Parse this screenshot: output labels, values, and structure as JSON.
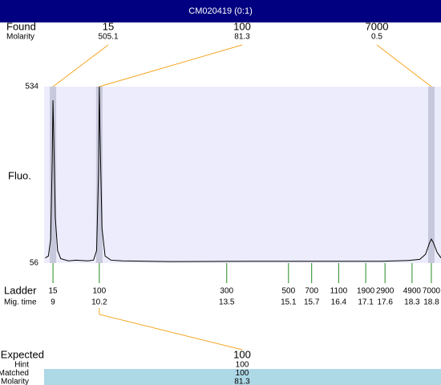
{
  "header": {
    "title": "CM020419 (0:1)"
  },
  "found": {
    "label": "Found",
    "sublabel": "Molarity",
    "peaks": [
      {
        "size": 15,
        "molarity": 505.1
      },
      {
        "size": 100,
        "molarity": 81.3
      },
      {
        "size": 7000,
        "molarity": 0.5
      }
    ]
  },
  "plot": {
    "y_label": "Fluo.",
    "ylim": [
      56,
      534
    ],
    "yticks": [
      534,
      56
    ],
    "xlim": [
      8.77,
      19.05
    ],
    "trace": {
      "x": [
        8.8,
        8.88,
        8.94,
        8.98,
        9.0,
        9.02,
        9.06,
        9.12,
        9.2,
        9.4,
        9.6,
        9.9,
        10.05,
        10.13,
        10.18,
        10.2,
        10.22,
        10.27,
        10.35,
        10.5,
        10.8,
        12,
        14,
        16,
        17.5,
        18.2,
        18.5,
        18.65,
        18.75,
        18.8,
        18.85,
        18.95,
        19.05
      ],
      "y": [
        70,
        75,
        120,
        330,
        497,
        400,
        180,
        90,
        68,
        62,
        64,
        62,
        64,
        90,
        300,
        534,
        400,
        150,
        75,
        64,
        62,
        60,
        61,
        61,
        61,
        63,
        66,
        80,
        110,
        121,
        112,
        85,
        70
      ]
    }
  },
  "ladder": {
    "label": "Ladder",
    "sublabel": "Mig. time",
    "sizes": [
      15,
      100,
      300,
      500,
      700,
      1100,
      1900,
      2900,
      4900,
      7000
    ],
    "times": [
      9,
      10.2,
      13.5,
      15.1,
      15.7,
      16.4,
      17.1,
      17.6,
      18.3,
      18.8
    ]
  },
  "expected": {
    "label": "Expected",
    "value": 100,
    "rows": [
      {
        "label": "Hint",
        "value": 100
      },
      {
        "label": "Matched",
        "value": 100
      },
      {
        "label": "Molarity",
        "value": 81.3
      }
    ]
  }
}
